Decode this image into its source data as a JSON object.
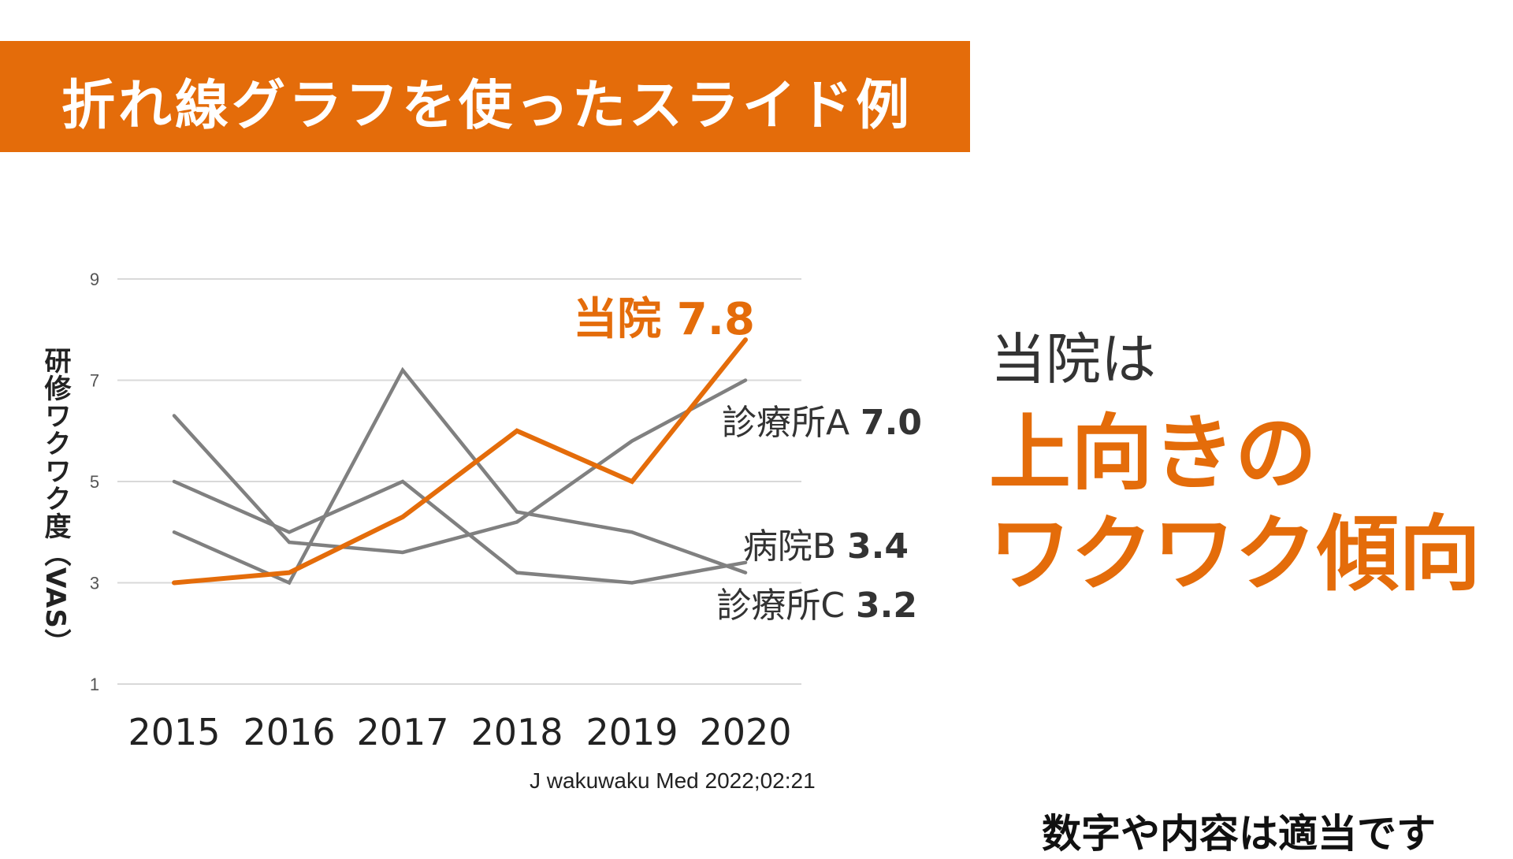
{
  "title": "折れ線グラフを使ったスライド例",
  "chart_data": {
    "type": "line",
    "ylabel": "研修ワクワク度（VAS）",
    "xlabel": "",
    "x": [
      "2015",
      "2016",
      "2017",
      "2018",
      "2019",
      "2020"
    ],
    "ylim": [
      1,
      9
    ],
    "yticks": [
      1,
      3,
      5,
      7,
      9
    ],
    "grid": true,
    "series": [
      {
        "name": "診療所A",
        "end_label": "7.0",
        "color": "#808080",
        "values": [
          6.3,
          3.8,
          3.6,
          4.2,
          5.8,
          7.0
        ]
      },
      {
        "name": "病院B",
        "end_label": "3.4",
        "color": "#808080",
        "values": [
          5.0,
          4.0,
          5.0,
          3.2,
          3.0,
          3.4
        ]
      },
      {
        "name": "診療所C",
        "end_label": "3.2",
        "color": "#808080",
        "values": [
          4.0,
          3.0,
          7.2,
          4.4,
          4.0,
          3.2
        ]
      },
      {
        "name": "当院",
        "end_label": "7.8",
        "color": "#e46c0a",
        "values": [
          3.0,
          3.2,
          4.3,
          6.0,
          5.0,
          7.8
        ]
      }
    ]
  },
  "citation": "J wakuwaku Med 2022;02:21",
  "message": {
    "line1": "当院は",
    "line2": "上向きの",
    "line3": "ワクワク傾向"
  },
  "note": "数字や内容は適当です"
}
